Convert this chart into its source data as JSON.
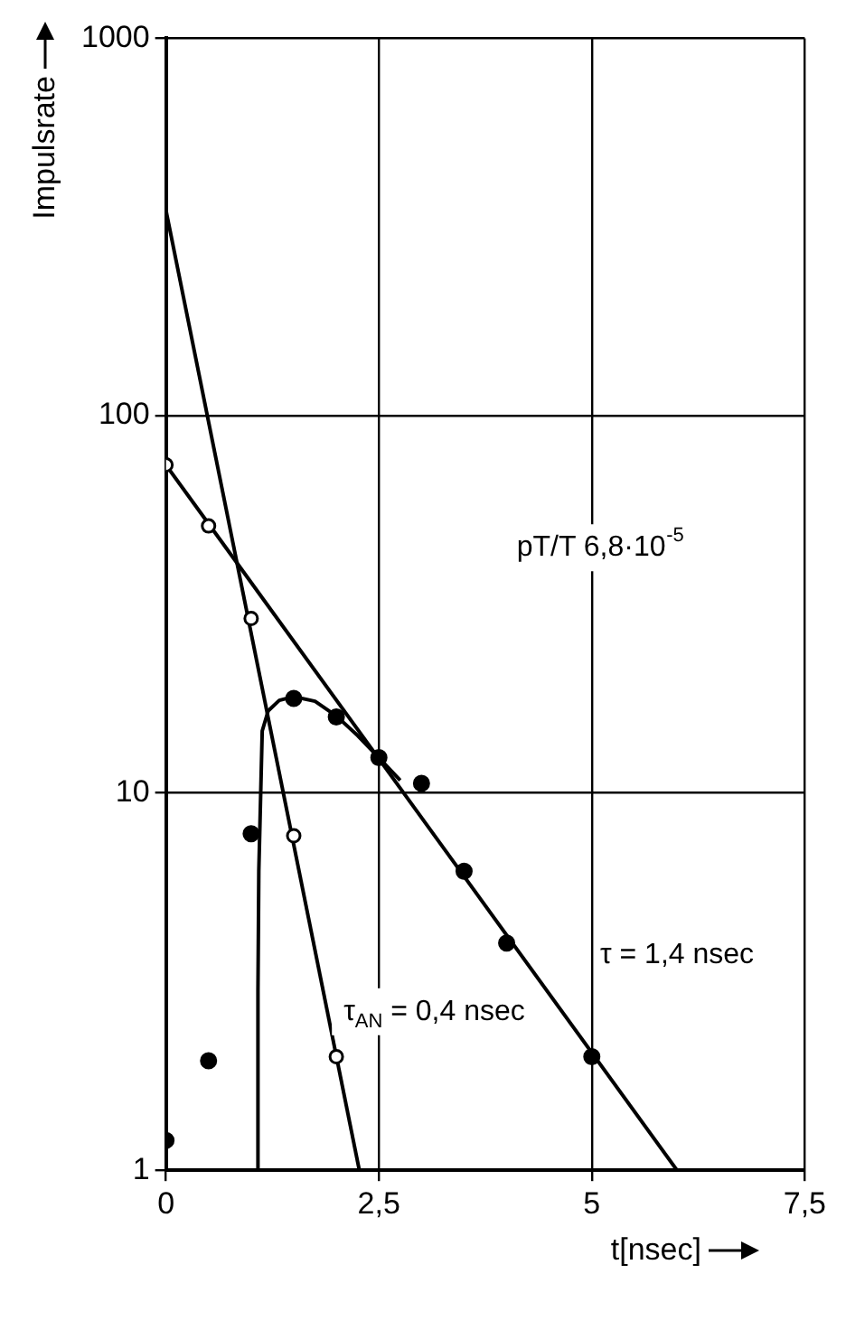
{
  "chart_data": {
    "type": "scatter",
    "xlabel": "t[nsec]",
    "ylabel": "Impulsrate",
    "xlim": [
      0,
      7.5
    ],
    "ylim": [
      1,
      1000
    ],
    "xticks": [
      0,
      {
        "value": 2.5,
        "label": "2,5"
      },
      5,
      {
        "value": 7.5,
        "label": "7,5"
      }
    ],
    "yticks": [
      1,
      10,
      100,
      1000
    ],
    "log": "y",
    "grid": true,
    "legend": false,
    "marker": "circle",
    "series": [
      {
        "color": "#000000",
        "x": [
          0,
          0.5,
          1,
          1.5,
          2,
          2.5,
          3,
          3.5,
          4,
          5
        ],
        "values": [
          1.2,
          1.95,
          7.8,
          17.8,
          15.9,
          12.4,
          10.6,
          6.2,
          4,
          2
        ]
      },
      {
        "color": "#000000",
        "x": [
          0,
          0.5,
          1,
          1.5,
          2
        ],
        "values": [
          74,
          51,
          29,
          7.7,
          2
        ]
      },
      {
        "type": "line",
        "color": "#000000",
        "marker": "none",
        "x": [
          0,
          6
        ],
        "values": [
          74,
          1
        ]
      },
      {
        "type": "line",
        "color": "#000000",
        "marker": "none",
        "x": [
          0,
          2.27
        ],
        "values": [
          350,
          1
        ]
      },
      {
        "type": "line",
        "color": "#000000",
        "marker": "none",
        "x": [
          1.07,
          1.08,
          1.09,
          1.13,
          1.2,
          1.33,
          1.5,
          1.75,
          2,
          2.25,
          2.5,
          2.75
        ],
        "values": [
          1,
          3,
          6.2,
          14.6,
          16.5,
          17.6,
          18,
          17.5,
          16,
          14.2,
          12.4,
          10.8
        ]
      }
    ],
    "annotations": [
      "pT/T 6,8·10$^{-5}$",
      "τ = 1,4 nsec",
      "τ$_{AN}$ = 0,4 nsec"
    ]
  }
}
